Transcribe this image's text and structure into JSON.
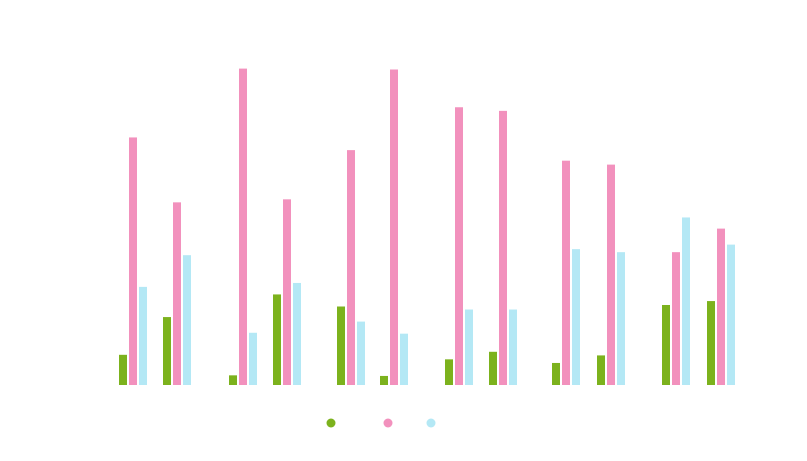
{
  "chart_data": {
    "type": "bar",
    "categories": [
      "",
      "",
      "",
      "",
      "",
      "",
      "",
      "",
      "",
      "",
      "",
      ""
    ],
    "ylim": [
      0,
      105
    ],
    "grid": false,
    "legend": "bottom",
    "series": [
      {
        "color": "#7cb21d",
        "values": [
          10,
          22.5,
          3.2,
          30,
          26,
          3,
          8.5,
          11,
          7.3,
          9.8,
          26.5,
          27.8
        ]
      },
      {
        "color": "#f291bd",
        "values": [
          82,
          60.5,
          104.8,
          61.5,
          77.8,
          104.5,
          92,
          90.8,
          74.3,
          73,
          44,
          51.8
        ]
      },
      {
        "color": "#b4e8f5",
        "values": [
          32.5,
          43,
          17.3,
          33.8,
          21,
          17,
          25,
          25,
          45,
          44,
          55.5,
          46.5
        ]
      }
    ]
  }
}
